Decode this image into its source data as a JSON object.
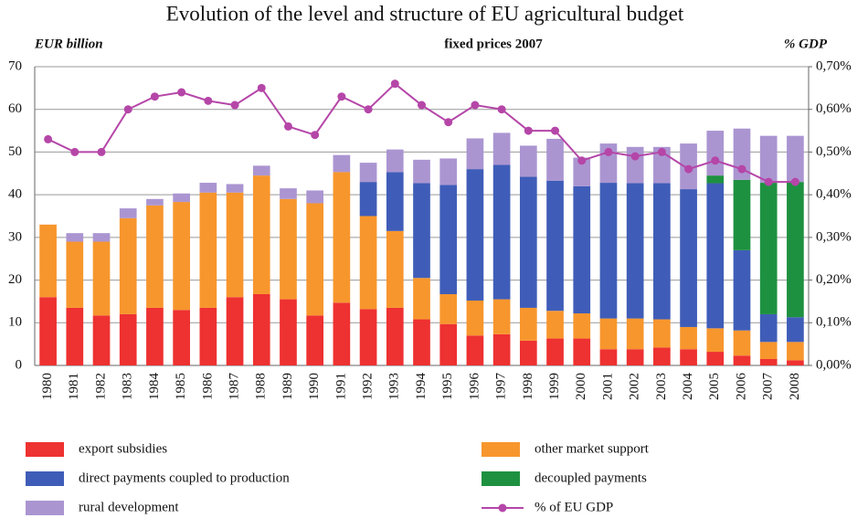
{
  "chart_data": {
    "type": "bar",
    "stacked": true,
    "title": "Evolution of the level and structure of EU agricultural budget",
    "y_label": "EUR billion",
    "subtitle": "fixed prices 2007",
    "y2_label": "% GDP",
    "categories": [
      "1980",
      "1981",
      "1982",
      "1983",
      "1984",
      "1985",
      "1986",
      "1987",
      "1988",
      "1989",
      "1990",
      "1991",
      "1992",
      "1993",
      "1994",
      "1995",
      "1996",
      "1997",
      "1998",
      "1999",
      "2000",
      "2001",
      "2002",
      "2003",
      "2004",
      "2005",
      "2006",
      "2007",
      "2008"
    ],
    "series": [
      {
        "name": "export subsidies",
        "color": "#ee3131",
        "values": [
          16,
          13.5,
          11.7,
          12,
          13.5,
          13,
          13.5,
          16,
          16.7,
          15.5,
          11.7,
          14.7,
          13.2,
          13.5,
          10.8,
          9.7,
          7,
          7.3,
          5.8,
          6.3,
          6.3,
          3.8,
          3.8,
          4.2,
          3.8,
          3.2,
          2.3,
          1.5,
          1.2
        ]
      },
      {
        "name": "other market support",
        "color": "#f7962d",
        "values": [
          17,
          15.5,
          17.3,
          22.5,
          24,
          25.3,
          27,
          24.5,
          27.8,
          23.5,
          26.3,
          30.6,
          21.8,
          18,
          9.7,
          7,
          8.2,
          8.2,
          7.7,
          6.5,
          5.9,
          7.2,
          7.2,
          6.6,
          5.2,
          5.5,
          5.9,
          4,
          4.3
        ]
      },
      {
        "name": "direct payments coupled to production",
        "color": "#3f5db8",
        "values": [
          0,
          0,
          0,
          0,
          0,
          0,
          0,
          0,
          0,
          0,
          0,
          0,
          8,
          13.8,
          22.2,
          25.6,
          30.8,
          31.5,
          30.7,
          30.5,
          29.8,
          31.8,
          31.7,
          31.9,
          32.3,
          34,
          18.8,
          6.5,
          5.8
        ]
      },
      {
        "name": "decoupled payments",
        "color": "#1e9140",
        "values": [
          0,
          0,
          0,
          0,
          0,
          0,
          0,
          0,
          0,
          0,
          0,
          0,
          0,
          0,
          0,
          0,
          0,
          0,
          0,
          0,
          0,
          0,
          0,
          0,
          0,
          1.8,
          16.5,
          30.8,
          31.7
        ]
      },
      {
        "name": "rural development",
        "color": "#ab95d1",
        "values": [
          0,
          2,
          2,
          2.3,
          1.5,
          2,
          2.3,
          2,
          2.3,
          2.5,
          3,
          4,
          4.5,
          5.3,
          5.5,
          6.2,
          7.2,
          7.5,
          7.3,
          9.8,
          6.7,
          9.2,
          8.5,
          8.5,
          10.7,
          10.5,
          12,
          11,
          10.8
        ]
      },
      {
        "name": "% of EU GDP",
        "color": "#b546a8",
        "type": "line",
        "axis": "y2",
        "values": [
          0.53,
          0.5,
          0.5,
          0.6,
          0.63,
          0.64,
          0.62,
          0.61,
          0.65,
          0.56,
          0.54,
          0.63,
          0.6,
          0.66,
          0.61,
          0.57,
          0.61,
          0.6,
          0.55,
          0.55,
          0.48,
          0.5,
          0.49,
          0.5,
          0.46,
          0.48,
          0.46,
          0.43,
          0.43
        ]
      }
    ],
    "ylim": [
      0,
      70
    ],
    "yticks": [
      0,
      10,
      20,
      30,
      40,
      50,
      60,
      70
    ],
    "y2lim": [
      0,
      0.7
    ],
    "y2ticks": [
      {
        "value": 0,
        "label": "0,00%"
      },
      {
        "value": 0.1,
        "label": "0,10%"
      },
      {
        "value": 0.2,
        "label": "0,20%"
      },
      {
        "value": 0.3,
        "label": "0,30%"
      },
      {
        "value": 0.4,
        "label": "0,40%"
      },
      {
        "value": 0.5,
        "label": "0,50%"
      },
      {
        "value": 0.6,
        "label": "0,60%"
      },
      {
        "value": 0.7,
        "label": "0,70%"
      }
    ],
    "grid": true,
    "legend": "bottom"
  }
}
